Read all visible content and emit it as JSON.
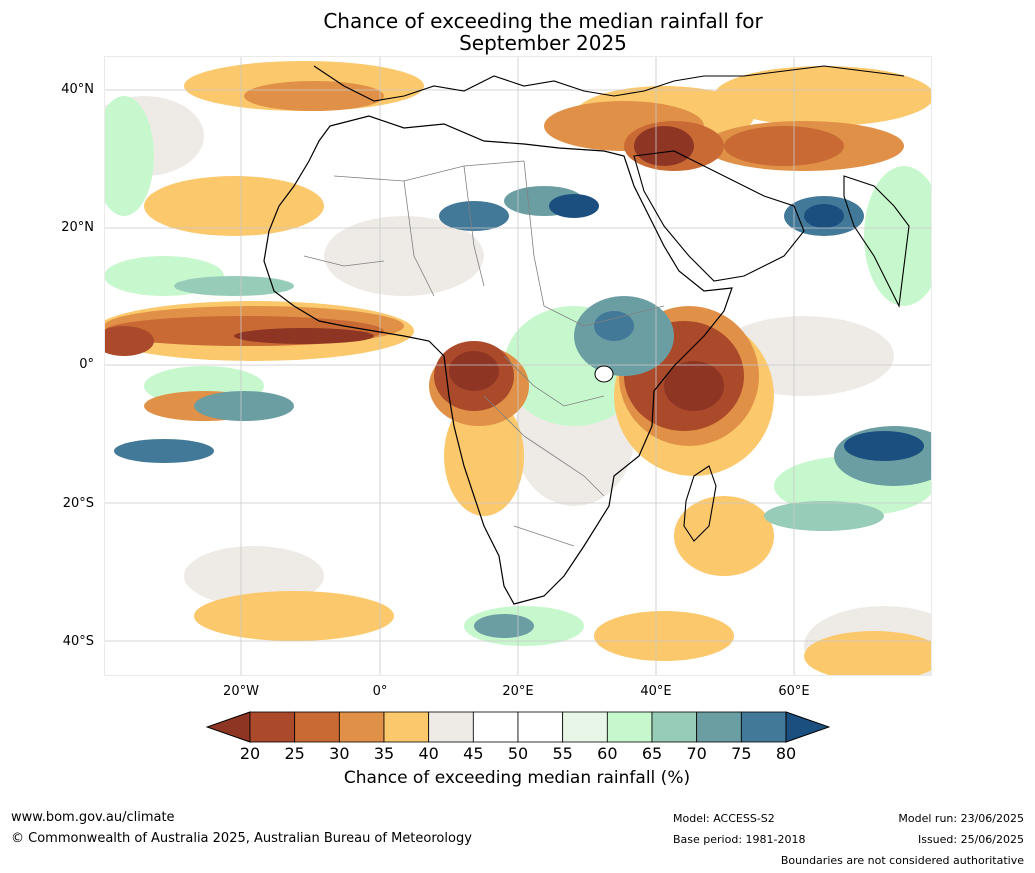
{
  "title_line1": "Chance of exceeding the median rainfall for",
  "title_line2": "September 2025",
  "latitude_labels": [
    "40°N",
    "20°N",
    "0°",
    "20°S",
    "40°S"
  ],
  "longitude_labels": [
    "20°W",
    "0°",
    "20°E",
    "40°E",
    "60°E"
  ],
  "colorbar": {
    "ticks": [
      "20",
      "25",
      "30",
      "35",
      "40",
      "45",
      "50",
      "55",
      "60",
      "65",
      "70",
      "75",
      "80"
    ],
    "label": "Chance of exceeding median rainfall (%)",
    "colors": [
      "#8e3524",
      "#ab4a2b",
      "#c96a34",
      "#e09147",
      "#fbc86c",
      "#eeebe6",
      "#ffffff",
      "#ffffff",
      "#e8f6e8",
      "#c7f8cd",
      "#97cdb8",
      "#6b9ea3",
      "#437998",
      "#1b4f80"
    ]
  },
  "footer": {
    "website": "www.bom.gov.au/climate",
    "copyright": "© Commonwealth of Australia 2025, Australian Bureau of Meteorology",
    "model": "Model: ACCESS-S2",
    "base_period": "Base period: 1981-2018",
    "model_run": "Model run: 23/06/2025",
    "issued": "Issued: 25/06/2025",
    "disclaimer": "Boundaries are not considered authoritative"
  }
}
